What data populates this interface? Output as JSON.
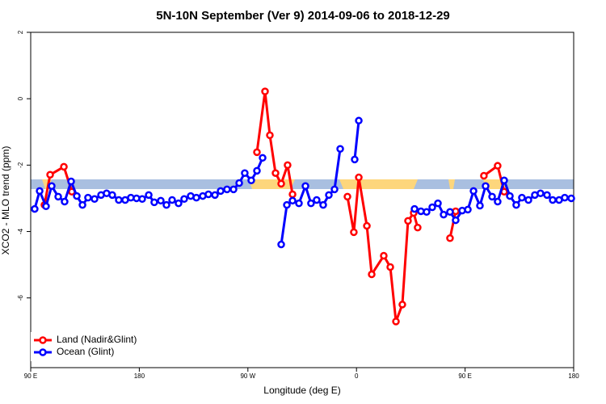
{
  "chart_data": {
    "type": "line",
    "title": "5N-10N September (Ver 9)   2014-09-06 to 2018-12-29",
    "x_label": "Longitude (deg E)",
    "y_label": "XCO2 - MLO trend (ppm)",
    "xlim": [
      90,
      540
    ],
    "ylim": [
      -8.1,
      2
    ],
    "xticks": [
      {
        "value": 90,
        "label": "90 E"
      },
      180,
      {
        "value": 270,
        "label": "90 W"
      },
      {
        "value": 360,
        "label": "0"
      },
      {
        "value": 450,
        "label": "90 E"
      },
      {
        "value": 540,
        "label": "180"
      }
    ],
    "yticks": [
      2,
      0,
      -2,
      -4,
      -6
    ],
    "legend": "bottomleft",
    "series": [
      {
        "name": "Land (Nadir&Glint)",
        "color": "#ff0000",
        "x": [
          101.4,
          106.1,
          117.5,
          124.1,
          200,
          277.5,
          284.2,
          288.2,
          292.9,
          297.6,
          302.9,
          307.0,
          340,
          352.5,
          357.8,
          361.9,
          368.6,
          372.6,
          382.6,
          388.0,
          392.7,
          398.0,
          402.7,
          407.4,
          410.7,
          430,
          437.5,
          442.2,
          450,
          465.6,
          477.0,
          482.4
        ],
        "values": [
          -3.2,
          -2.29,
          -2.05,
          -2.8,
          null,
          -1.61,
          0.22,
          -1.1,
          -2.24,
          -2.56,
          -2.0,
          -2.88,
          null,
          -2.95,
          -4.02,
          -2.37,
          -3.83,
          -5.29,
          -4.73,
          -5.07,
          -6.71,
          -6.2,
          -3.68,
          -3.44,
          -3.88,
          null,
          -4.2,
          -3.39,
          null,
          -2.32,
          -2.02,
          -2.8
        ]
      },
      {
        "name": "Ocean (Glint)",
        "color": "#0000ff",
        "x": [
          93.3,
          97.4,
          102.7,
          107.4,
          112.8,
          118.1,
          123.5,
          128.2,
          132.9,
          137.5,
          142.9,
          148.3,
          152.9,
          157.6,
          163.0,
          168.3,
          173.0,
          177.7,
          182.4,
          187.8,
          192.4,
          197.8,
          202.5,
          207.2,
          212.5,
          217.2,
          222.6,
          227.3,
          232.6,
          237.3,
          242.7,
          247.4,
          252.7,
          258.1,
          262.8,
          267.4,
          272.8,
          277.5,
          282.2,
          290,
          297.6,
          302.3,
          307.0,
          312.3,
          317.7,
          322.3,
          327.0,
          332.4,
          337.1,
          341.8,
          346.5,
          352,
          358.5,
          361.9,
          385,
          408.1,
          413.4,
          418.1,
          422.8,
          427.5,
          432.2,
          437.5,
          442.2,
          447.6,
          452.3,
          457.0,
          462.3,
          467.0,
          472.4,
          477.0,
          482.4,
          487.1,
          492.4,
          497.1,
          502.5,
          507.8,
          512.5,
          517.9,
          522.6,
          527.9,
          532.6,
          538.0
        ],
        "values": [
          -3.32,
          -2.78,
          -3.24,
          -2.63,
          -2.95,
          -3.1,
          -2.49,
          -2.93,
          -3.2,
          -2.98,
          -3.02,
          -2.9,
          -2.85,
          -2.9,
          -3.05,
          -3.05,
          -2.98,
          -3.0,
          -3.02,
          -2.9,
          -3.12,
          -3.07,
          -3.2,
          -3.05,
          -3.15,
          -3.02,
          -2.93,
          -2.98,
          -2.93,
          -2.88,
          -2.9,
          -2.78,
          -2.73,
          -2.73,
          -2.54,
          -2.24,
          -2.46,
          -2.17,
          -1.78,
          null,
          -4.39,
          -3.2,
          -3.07,
          -3.15,
          -2.63,
          -3.15,
          -3.05,
          -3.2,
          -2.9,
          -2.73,
          -1.51,
          null,
          -1.83,
          -0.66,
          null,
          -3.32,
          -3.39,
          -3.41,
          -3.27,
          -3.15,
          -3.49,
          -3.41,
          -3.66,
          -3.37,
          -3.34,
          -2.78,
          -3.22,
          -2.63,
          -2.95,
          -3.1,
          -2.46,
          -2.93,
          -3.2,
          -2.98,
          -3.05,
          -2.9,
          -2.85,
          -2.9,
          -3.05,
          -3.05,
          -2.98,
          -3.0
        ]
      }
    ]
  }
}
